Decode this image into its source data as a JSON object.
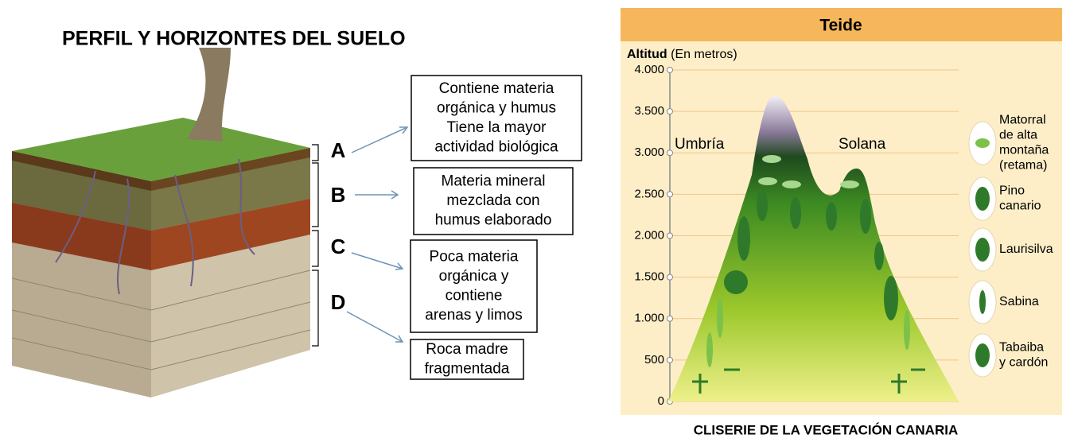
{
  "left": {
    "title": "PERFIL Y HORIZONTES DEL SUELO",
    "horizons": [
      {
        "letter": "A",
        "lines": [
          "Contiene materia",
          "orgánica y humus",
          "Tiene la mayor",
          "actividad biológica"
        ]
      },
      {
        "letter": "B",
        "lines": [
          "Materia mineral",
          "mezclada con",
          "humus elaborado"
        ]
      },
      {
        "letter": "C",
        "lines": [
          "Poca materia",
          "orgánica y",
          "contiene",
          "arenas y limos"
        ]
      },
      {
        "letter": "D",
        "lines": [
          "Roca madre",
          "fragmentada"
        ]
      }
    ]
  },
  "right": {
    "title": "Teide",
    "axis_title": "Altitud",
    "axis_unit": "(En metros)",
    "ylim": [
      0,
      4000
    ],
    "yticks": [
      {
        "value": 0,
        "label": "0"
      },
      {
        "value": 500,
        "label": "500"
      },
      {
        "value": 1000,
        "label": "1.000"
      },
      {
        "value": 1500,
        "label": "1.500"
      },
      {
        "value": 2000,
        "label": "2.000"
      },
      {
        "value": 2500,
        "label": "2.500"
      },
      {
        "value": 3000,
        "label": "3.000"
      },
      {
        "value": 3500,
        "label": "3.500"
      },
      {
        "value": 4000,
        "label": "4.000"
      }
    ],
    "slopes": [
      "Umbría",
      "Solana"
    ],
    "legend": [
      {
        "lines": [
          "Matorral",
          "de alta",
          "montaña",
          "(retama)"
        ]
      },
      {
        "lines": [
          "Pino",
          "canario"
        ]
      },
      {
        "lines": [
          "Laurisilva"
        ]
      },
      {
        "lines": [
          "Sabina"
        ]
      },
      {
        "lines": [
          "Tabaiba",
          "y cardón"
        ]
      }
    ],
    "caption": "CLISERIE DE LA VEGETACIÓN CANARIA"
  }
}
